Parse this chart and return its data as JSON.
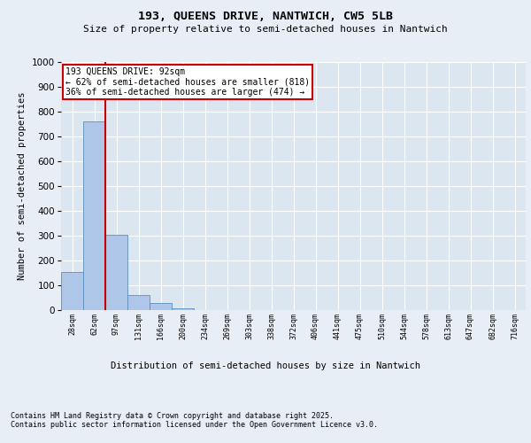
{
  "title_line1": "193, QUEENS DRIVE, NANTWICH, CW5 5LB",
  "title_line2": "Size of property relative to semi-detached houses in Nantwich",
  "xlabel": "Distribution of semi-detached houses by size in Nantwich",
  "ylabel": "Number of semi-detached properties",
  "bin_labels": [
    "28sqm",
    "62sqm",
    "97sqm",
    "131sqm",
    "166sqm",
    "200sqm",
    "234sqm",
    "269sqm",
    "303sqm",
    "338sqm",
    "372sqm",
    "406sqm",
    "441sqm",
    "475sqm",
    "510sqm",
    "544sqm",
    "578sqm",
    "613sqm",
    "647sqm",
    "682sqm",
    "716sqm"
  ],
  "bar_heights": [
    155,
    760,
    305,
    60,
    28,
    8,
    0,
    0,
    0,
    0,
    0,
    0,
    0,
    0,
    0,
    0,
    0,
    0,
    0,
    0,
    0
  ],
  "bar_color": "#aec6e8",
  "bar_edge_color": "#5a8fc0",
  "property_line_x": 2.0,
  "property_sqm": 92,
  "pct_smaller": 62,
  "count_smaller": 818,
  "pct_larger": 36,
  "count_larger": 474,
  "annotation_box_color": "#cc0000",
  "ylim": [
    0,
    1000
  ],
  "yticks": [
    0,
    100,
    200,
    300,
    400,
    500,
    600,
    700,
    800,
    900,
    1000
  ],
  "footnote": "Contains HM Land Registry data © Crown copyright and database right 2025.\nContains public sector information licensed under the Open Government Licence v3.0.",
  "bg_color": "#e8eef5",
  "plot_bg_color": "#dce6f0"
}
